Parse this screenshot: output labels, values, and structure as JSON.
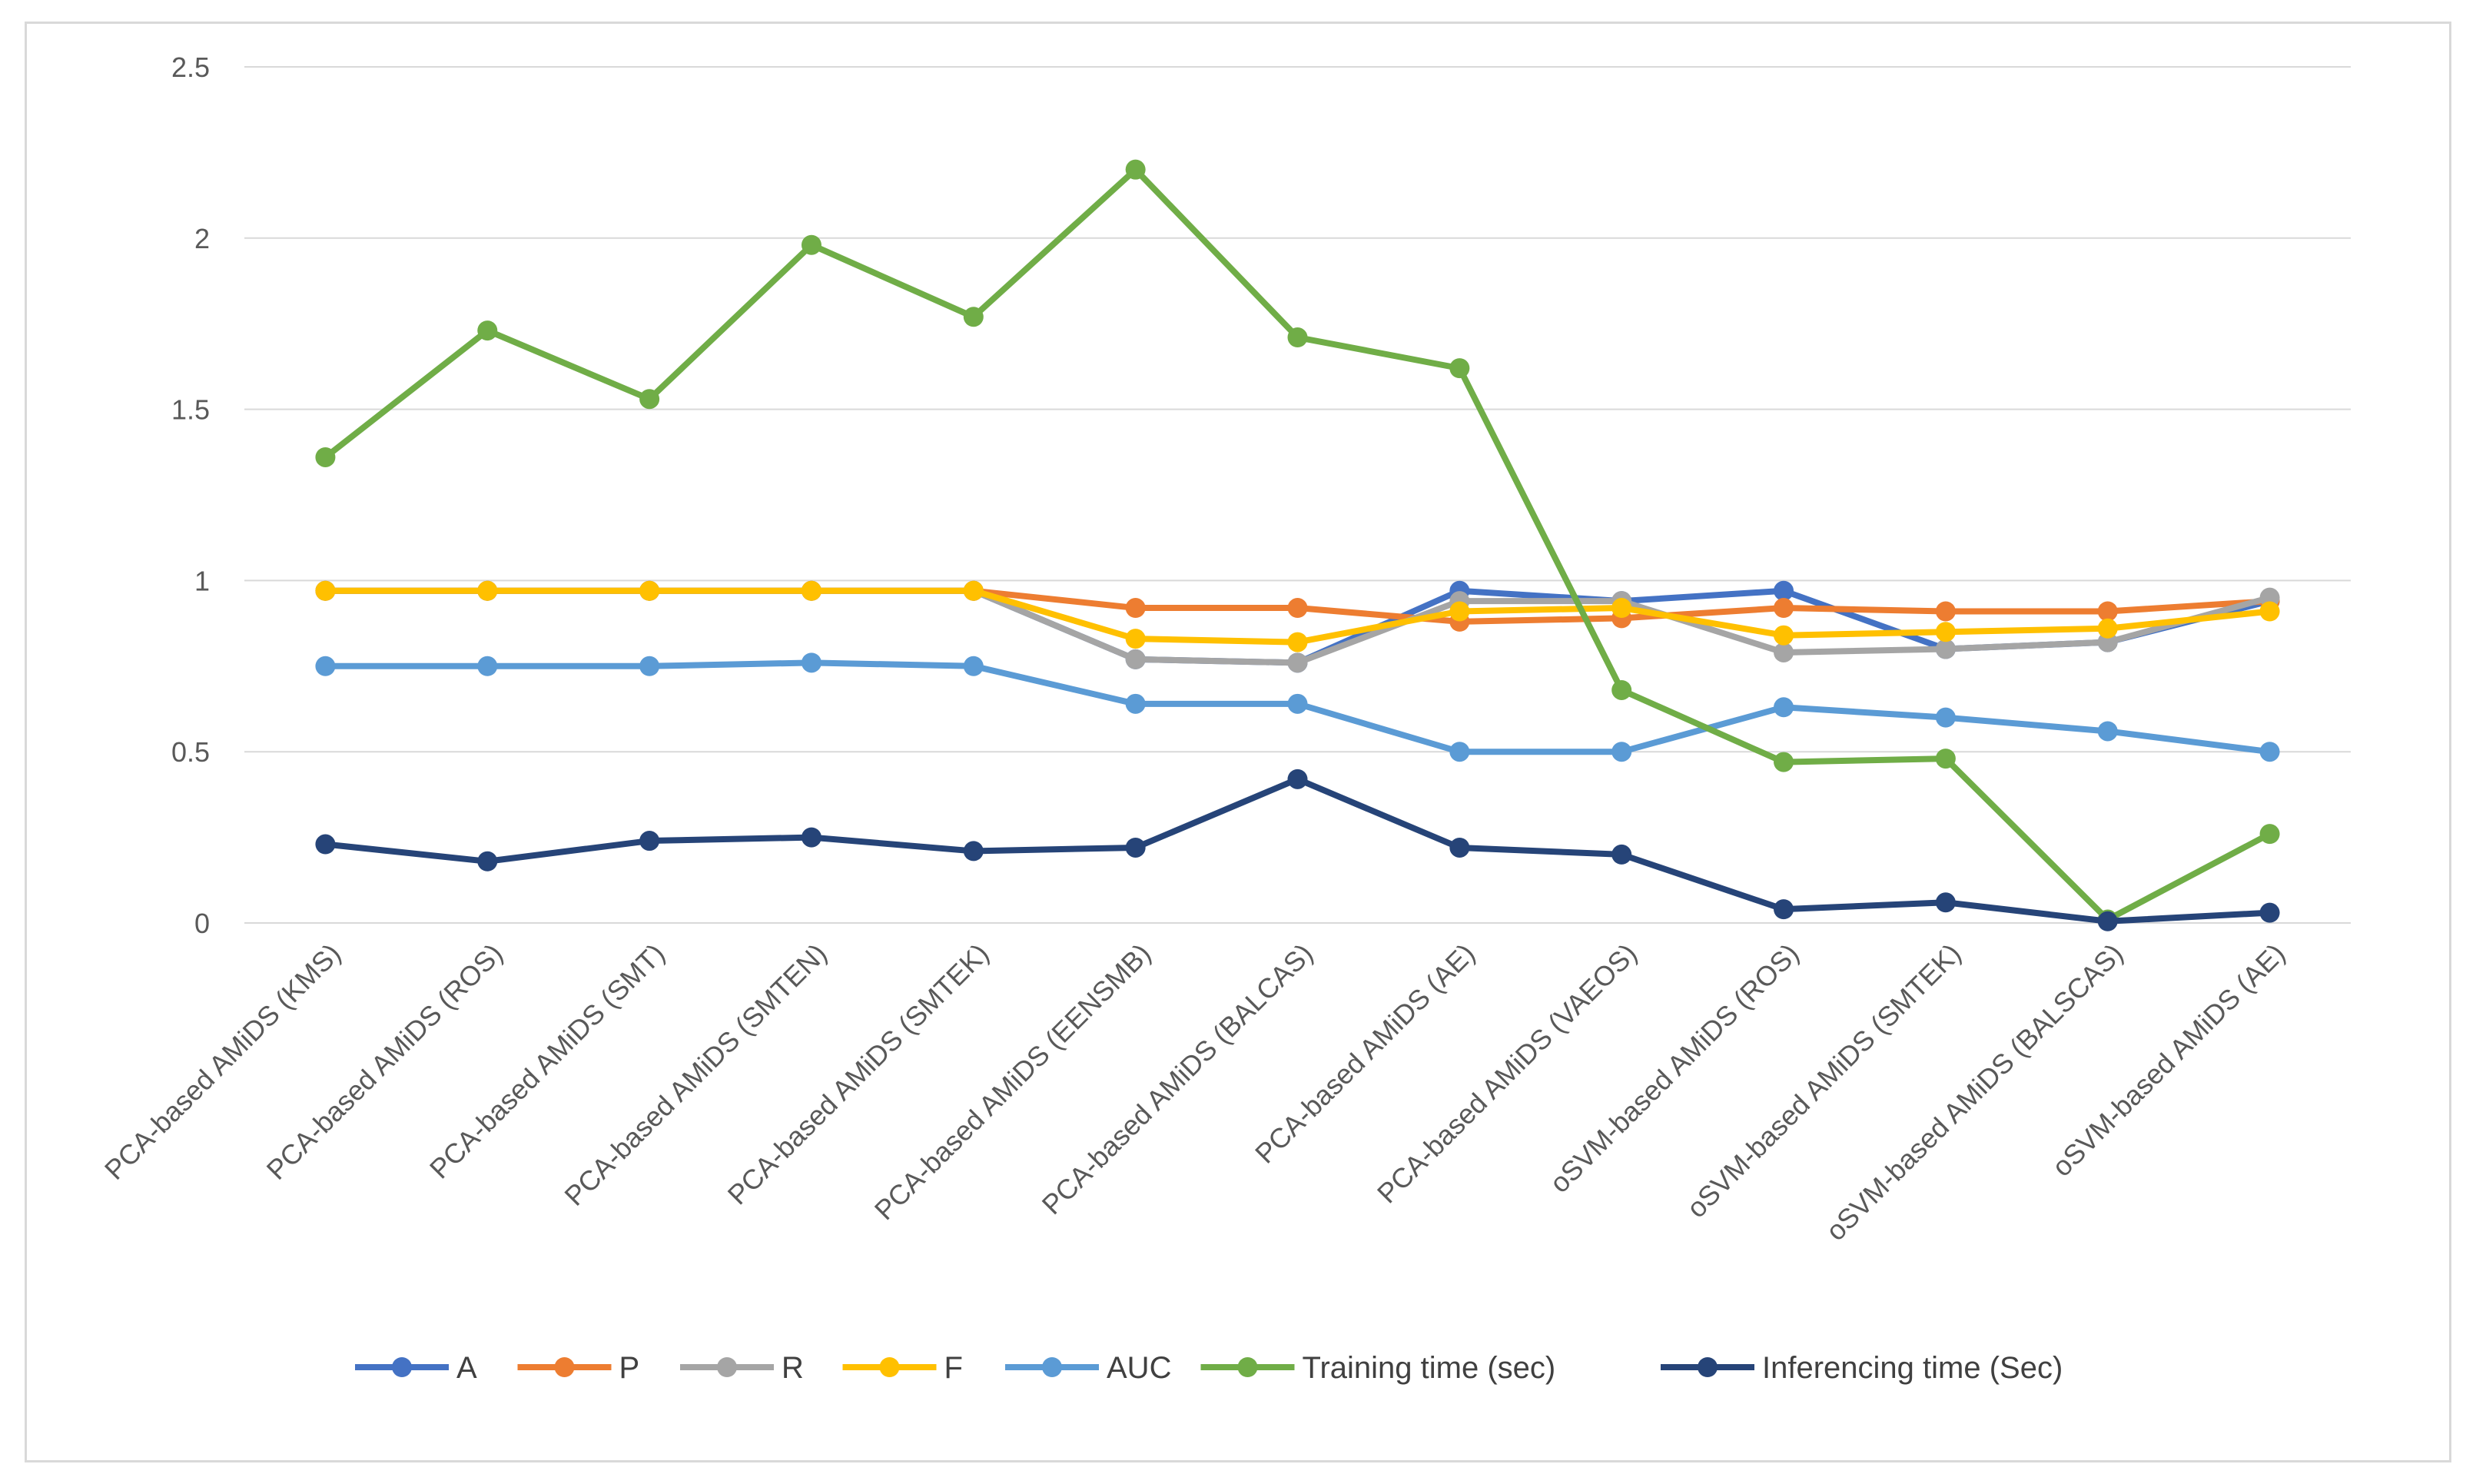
{
  "chart_data": {
    "type": "line",
    "title": "",
    "xlabel": "",
    "ylabel": "",
    "ylim": [
      0,
      2.5
    ],
    "yticks": [
      "0",
      "0.5",
      "1",
      "1.5",
      "2",
      "2.5"
    ],
    "grid": true,
    "legend_position": "bottom",
    "categories": [
      "PCA-based AMiDS (KMS)",
      "PCA-based AMiDS (ROS)",
      "PCA-based AMiDS (SMT)",
      "PCA-based AMiDS (SMTEN)",
      "PCA-based AMiDS (SMTEK)",
      "PCA-based AMiDS (EENSMB)",
      "PCA-based AMiDS (BALCAS)",
      "PCA-based AMiDS (AE)",
      "PCA-based AMiDS (VAEOS)",
      "oSVM-based AMiDS (ROS)",
      "oSVM-based AMiDS (SMTEK)",
      "oSVM-based AMiDS (BALSCAS)",
      "oSVM-based AMiDS (AE)"
    ],
    "series": [
      {
        "name": "A",
        "color": "#4472C4",
        "values": [
          0.97,
          0.97,
          0.97,
          0.97,
          0.97,
          0.77,
          0.76,
          0.97,
          0.94,
          0.97,
          0.8,
          0.82,
          0.94
        ]
      },
      {
        "name": "P",
        "color": "#ED7D31",
        "values": [
          0.97,
          0.97,
          0.97,
          0.97,
          0.97,
          0.92,
          0.92,
          0.88,
          0.89,
          0.92,
          0.91,
          0.91,
          0.94
        ]
      },
      {
        "name": "R",
        "color": "#A5A5A5",
        "values": [
          0.97,
          0.97,
          0.97,
          0.97,
          0.97,
          0.77,
          0.76,
          0.94,
          0.94,
          0.79,
          0.8,
          0.82,
          0.95
        ]
      },
      {
        "name": "F",
        "color": "#FFC000",
        "values": [
          0.97,
          0.97,
          0.97,
          0.97,
          0.97,
          0.83,
          0.82,
          0.91,
          0.92,
          0.84,
          0.85,
          0.86,
          0.91
        ]
      },
      {
        "name": "AUC",
        "color": "#5B9BD5",
        "values": [
          0.75,
          0.75,
          0.75,
          0.76,
          0.75,
          0.64,
          0.64,
          0.5,
          0.5,
          0.63,
          0.6,
          0.56,
          0.5
        ]
      },
      {
        "name": "Training time (sec)",
        "color": "#70AD47",
        "values": [
          1.36,
          1.73,
          1.53,
          1.98,
          1.77,
          2.2,
          1.71,
          1.62,
          0.68,
          0.47,
          0.48,
          0.01,
          0.26
        ]
      },
      {
        "name": "Inferencing time (Sec)",
        "color": "#264478",
        "values": [
          0.23,
          0.18,
          0.24,
          0.25,
          0.21,
          0.22,
          0.42,
          0.22,
          0.2,
          0.04,
          0.06,
          0.005,
          0.03
        ]
      }
    ]
  }
}
